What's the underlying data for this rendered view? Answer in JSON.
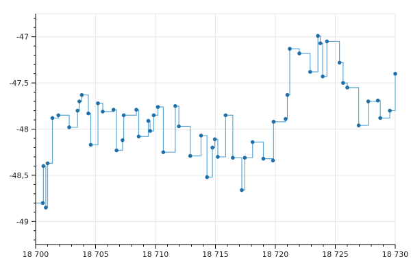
{
  "chart_data": {
    "type": "line",
    "step": true,
    "title": "",
    "xlabel": "",
    "ylabel": "",
    "xlim": [
      18700,
      18730
    ],
    "ylim": [
      -49.25,
      -46.75
    ],
    "x_ticks": [
      18700,
      18705,
      18710,
      18715,
      18720,
      18725,
      18730
    ],
    "x_tick_labels": [
      "18 700",
      "18 705",
      "18 710",
      "18 715",
      "18 720",
      "18 725",
      "18 730"
    ],
    "y_ticks": [
      -47,
      -47.5,
      -48,
      -48.5,
      -49
    ],
    "y_tick_labels": [
      "-47",
      "-47,5",
      "-48",
      "-48,5",
      "-49"
    ],
    "grid": true,
    "legend": "none",
    "colors": {
      "line": "#5aa9d6",
      "marker": "#1f6fa8",
      "grid": "#e6e6e6",
      "axis": "#000000"
    },
    "series": [
      {
        "x": [
          18700,
          18700.6,
          18700.65,
          18700.85,
          18701,
          18701.4,
          18701.9,
          18702.8,
          18703.5,
          18703.65,
          18703.85,
          18704.4,
          18704.6,
          18705.2,
          18705.6,
          18706.5,
          18706.75,
          18707.25,
          18707.35,
          18708.4,
          18708.6,
          18709.4,
          18709.55,
          18709.85,
          18710.2,
          18710.65,
          18711.65,
          18711.95,
          18712.9,
          18713.8,
          18714.3,
          18714.75,
          18714.95,
          18715.2,
          18715.85,
          18716.45,
          18717.2,
          18717.45,
          18718.1,
          18719,
          18719.8,
          18719.85,
          18720.85,
          18721,
          18721.2,
          18722,
          18722.9,
          18723.55,
          18723.75,
          18723.95,
          18724.3,
          18725.35,
          18725.65,
          18726,
          18726.95,
          18727.75,
          18728.55,
          18728.75,
          18729.55,
          18730
        ],
        "y": [
          -48.8,
          -48.8,
          -48.4,
          -48.85,
          -48.37,
          -47.88,
          -47.85,
          -47.98,
          -47.8,
          -47.7,
          -47.63,
          -47.83,
          -48.17,
          -47.72,
          -47.81,
          -47.79,
          -48.23,
          -48.12,
          -47.85,
          -47.79,
          -48.08,
          -47.91,
          -48.02,
          -47.85,
          -47.76,
          -48.25,
          -47.75,
          -47.97,
          -48.29,
          -48.07,
          -48.52,
          -48.2,
          -48.11,
          -48.3,
          -47.85,
          -48.31,
          -48.66,
          -48.31,
          -48.14,
          -48.32,
          -48.34,
          -47.92,
          -47.89,
          -47.63,
          -47.13,
          -47.18,
          -47.38,
          -46.99,
          -47.07,
          -47.43,
          -47.05,
          -47.28,
          -47.5,
          -47.55,
          -47.96,
          -47.7,
          -47.69,
          -47.88,
          -47.8,
          -47.4
        ],
        "markers": [
          false,
          true,
          true,
          true,
          true,
          true,
          true,
          true,
          true,
          true,
          true,
          true,
          true,
          true,
          true,
          true,
          true,
          true,
          true,
          true,
          true,
          true,
          true,
          true,
          true,
          true,
          true,
          true,
          true,
          true,
          true,
          true,
          true,
          true,
          true,
          true,
          true,
          true,
          true,
          true,
          true,
          true,
          true,
          true,
          true,
          true,
          true,
          true,
          true,
          true,
          true,
          true,
          true,
          true,
          true,
          true,
          true,
          true,
          true,
          true
        ]
      }
    ]
  }
}
